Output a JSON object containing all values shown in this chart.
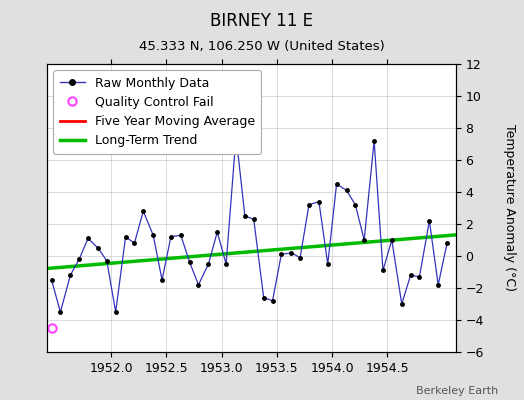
{
  "title": "BIRNEY 11 E",
  "subtitle": "45.333 N, 106.250 W (United States)",
  "ylabel_right": "Temperature Anomaly (°C)",
  "watermark": "Berkeley Earth",
  "background_color": "#e0e0e0",
  "plot_bg_color": "#ffffff",
  "xlim": [
    1951.42,
    1955.12
  ],
  "ylim": [
    -6,
    12
  ],
  "yticks": [
    -6,
    -4,
    -2,
    0,
    2,
    4,
    6,
    8,
    10,
    12
  ],
  "xticks": [
    1952,
    1952.5,
    1953,
    1953.5,
    1954,
    1954.5
  ],
  "raw_x": [
    1951.46,
    1951.54,
    1951.63,
    1951.71,
    1951.79,
    1951.88,
    1951.96,
    1952.04,
    1952.13,
    1952.21,
    1952.29,
    1952.38,
    1952.46,
    1952.54,
    1952.63,
    1952.71,
    1952.79,
    1952.88,
    1952.96,
    1953.04,
    1953.13,
    1953.21,
    1953.29,
    1953.38,
    1953.46,
    1953.54,
    1953.63,
    1953.71,
    1953.79,
    1953.88,
    1953.96,
    1954.04,
    1954.13,
    1954.21,
    1954.29,
    1954.38,
    1954.46,
    1954.54,
    1954.63,
    1954.71,
    1954.79,
    1954.88,
    1954.96,
    1955.04
  ],
  "raw_y": [
    -1.5,
    -3.5,
    -1.2,
    -0.2,
    1.1,
    0.5,
    -0.3,
    -3.5,
    1.2,
    0.8,
    2.8,
    1.3,
    -1.5,
    1.2,
    1.3,
    -0.4,
    -1.8,
    -0.5,
    1.5,
    -0.5,
    7.5,
    2.5,
    2.3,
    -2.6,
    -2.8,
    0.1,
    0.2,
    -0.1,
    3.2,
    3.4,
    -0.5,
    4.5,
    4.1,
    3.2,
    1.0,
    7.2,
    -0.9,
    1.0,
    -3.0,
    -1.2,
    -1.3,
    2.2,
    -1.8,
    0.8
  ],
  "qc_fail_x": [
    1951.46
  ],
  "qc_fail_y": [
    -4.5
  ],
  "trend_x": [
    1951.42,
    1955.12
  ],
  "trend_y": [
    -0.78,
    1.32
  ],
  "line_color": "#3333bb",
  "dot_color": "#000000",
  "trend_color": "#00bb00",
  "ma_color": "#ff0000",
  "qc_color": "#ff44ff",
  "grid_color": "#cccccc",
  "title_fontsize": 12,
  "subtitle_fontsize": 9.5,
  "tick_fontsize": 9,
  "legend_fontsize": 9
}
